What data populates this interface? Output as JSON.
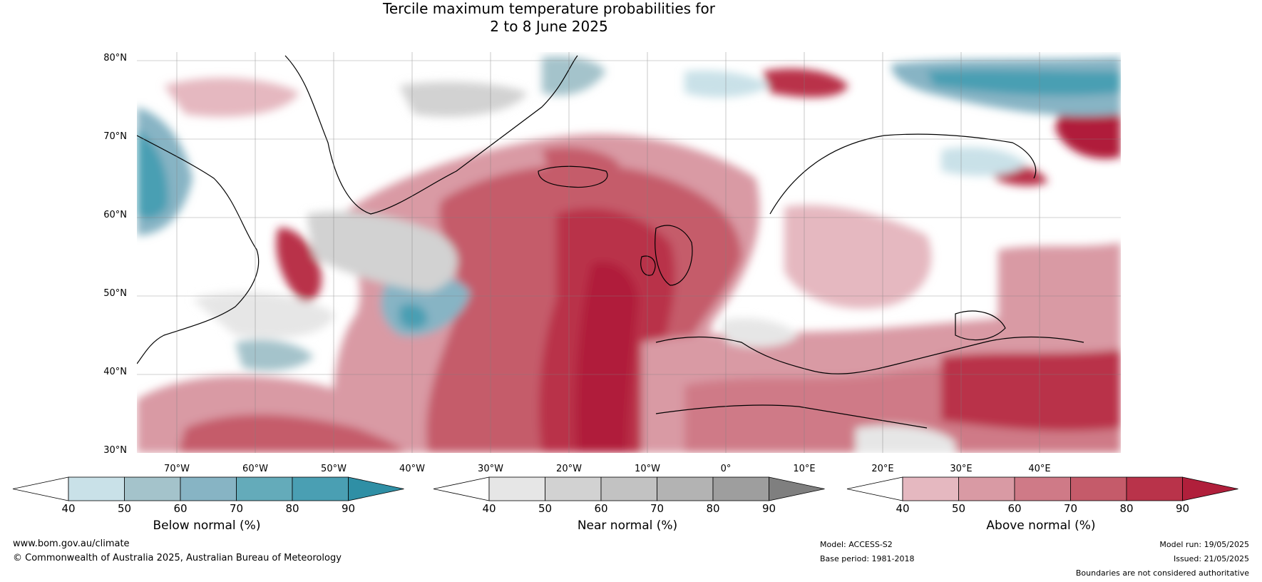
{
  "title": {
    "line1": "Tercile maximum temperature probabilities for",
    "line2": "2 to 8 June 2025"
  },
  "map": {
    "type": "probabilistic tercile forecast map",
    "region": "North Atlantic and Europe",
    "lat_range": [
      30,
      80
    ],
    "lon_range": [
      -80,
      45
    ],
    "lat_labels": [
      "80°N",
      "70°N",
      "60°N",
      "50°N",
      "40°N",
      "30°N"
    ],
    "lon_labels": [
      "70°W",
      "60°W",
      "50°W",
      "40°W",
      "30°W",
      "20°W",
      "10°W",
      "0°",
      "10°E",
      "20°E",
      "30°E",
      "40°E"
    ]
  },
  "colorbars": [
    {
      "title": "Below normal (%)",
      "ticks": [
        "40",
        "50",
        "60",
        "70",
        "80",
        "90"
      ],
      "colors": [
        "#ffffff",
        "#c9e1e8",
        "#a4c3cb",
        "#87b4c4",
        "#64abba",
        "#4a9fb3",
        "#2f8fa5"
      ]
    },
    {
      "title": "Near normal (%)",
      "ticks": [
        "40",
        "50",
        "60",
        "70",
        "80",
        "90"
      ],
      "colors": [
        "#ffffff",
        "#e6e6e6",
        "#d2d2d2",
        "#c2c2c2",
        "#b3b3b3",
        "#9e9e9e",
        "#7f7f7f"
      ]
    },
    {
      "title": "Above normal (%)",
      "ticks": [
        "40",
        "50",
        "60",
        "70",
        "80",
        "90"
      ],
      "colors": [
        "#ffffff",
        "#e5b8c0",
        "#d99aa4",
        "#cf7a87",
        "#c55b6a",
        "#b9334a",
        "#b01f3b"
      ]
    }
  ],
  "footer": {
    "site": "www.bom.gov.au/climate",
    "copyright": "© Commonwealth of Australia 2025, Australian Bureau of Meteorology",
    "model": "Model: ACCESS-S2",
    "base_period": "Base period: 1981-2018",
    "model_run": "Model run: 19/05/2025",
    "issued": "Issued: 21/05/2025",
    "disclaimer": "Boundaries are not considered authoritative"
  }
}
